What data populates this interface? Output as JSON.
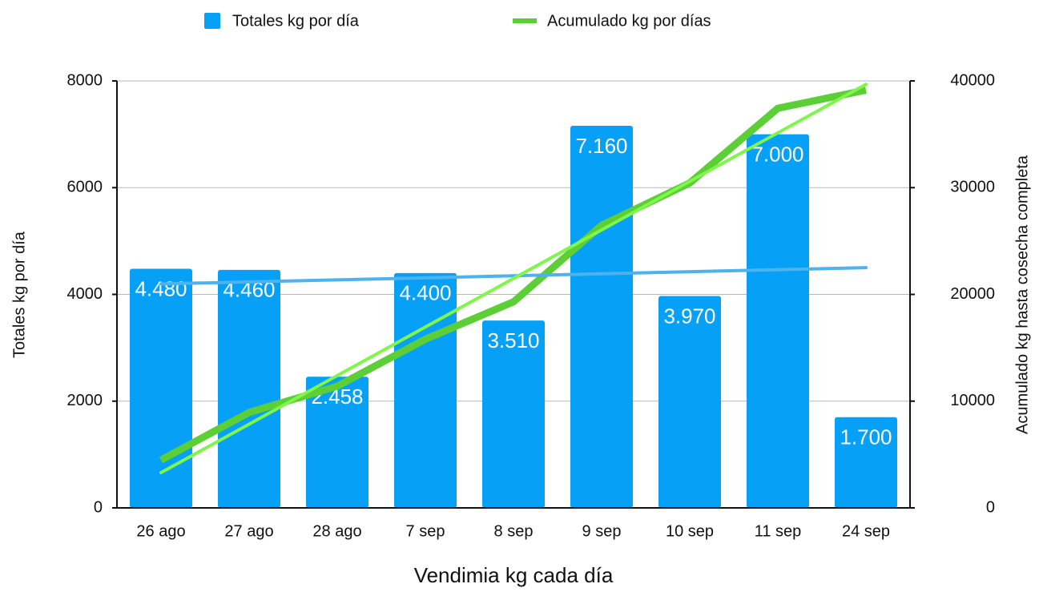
{
  "chart_data": {
    "type": "bar",
    "x_label": "Vendimia kg cada día",
    "y_label": "Totales kg por día",
    "y2_label": "Acumulado kg hasta cosecha completa",
    "legend": "top",
    "grid": true,
    "categories": [
      "26 ago",
      "27 ago",
      "28 ago",
      "7 sep",
      "8 sep",
      "9 sep",
      "10 sep",
      "11 sep",
      "24 sep"
    ],
    "series": [
      {
        "name": "Totales kg por día",
        "type": "bar",
        "color": "#06a1f7",
        "trendline_color": "#4db2ee",
        "values": [
          4480,
          4460,
          2458,
          4400,
          3510,
          7160,
          3970,
          7000,
          1700
        ],
        "value_labels": [
          "4.480",
          "4.460",
          "2.458",
          "4.400",
          "3.510",
          "7.160",
          "3.970",
          "7.000",
          "1.700"
        ]
      },
      {
        "name": "Acumulado kg por días",
        "type": "line",
        "axis": "y2",
        "color": "#5ccf36",
        "trendline_color": "#7ef64a",
        "values": [
          4480,
          8940,
          11398,
          15798,
          19308,
          26468,
          30438,
          37438,
          39138
        ]
      }
    ],
    "ylim": [
      0,
      8000
    ],
    "yticks": [
      0,
      2000,
      4000,
      6000,
      8000
    ],
    "y2lim": [
      0,
      40000
    ],
    "y2ticks": [
      0,
      10000,
      20000,
      30000,
      40000
    ]
  }
}
